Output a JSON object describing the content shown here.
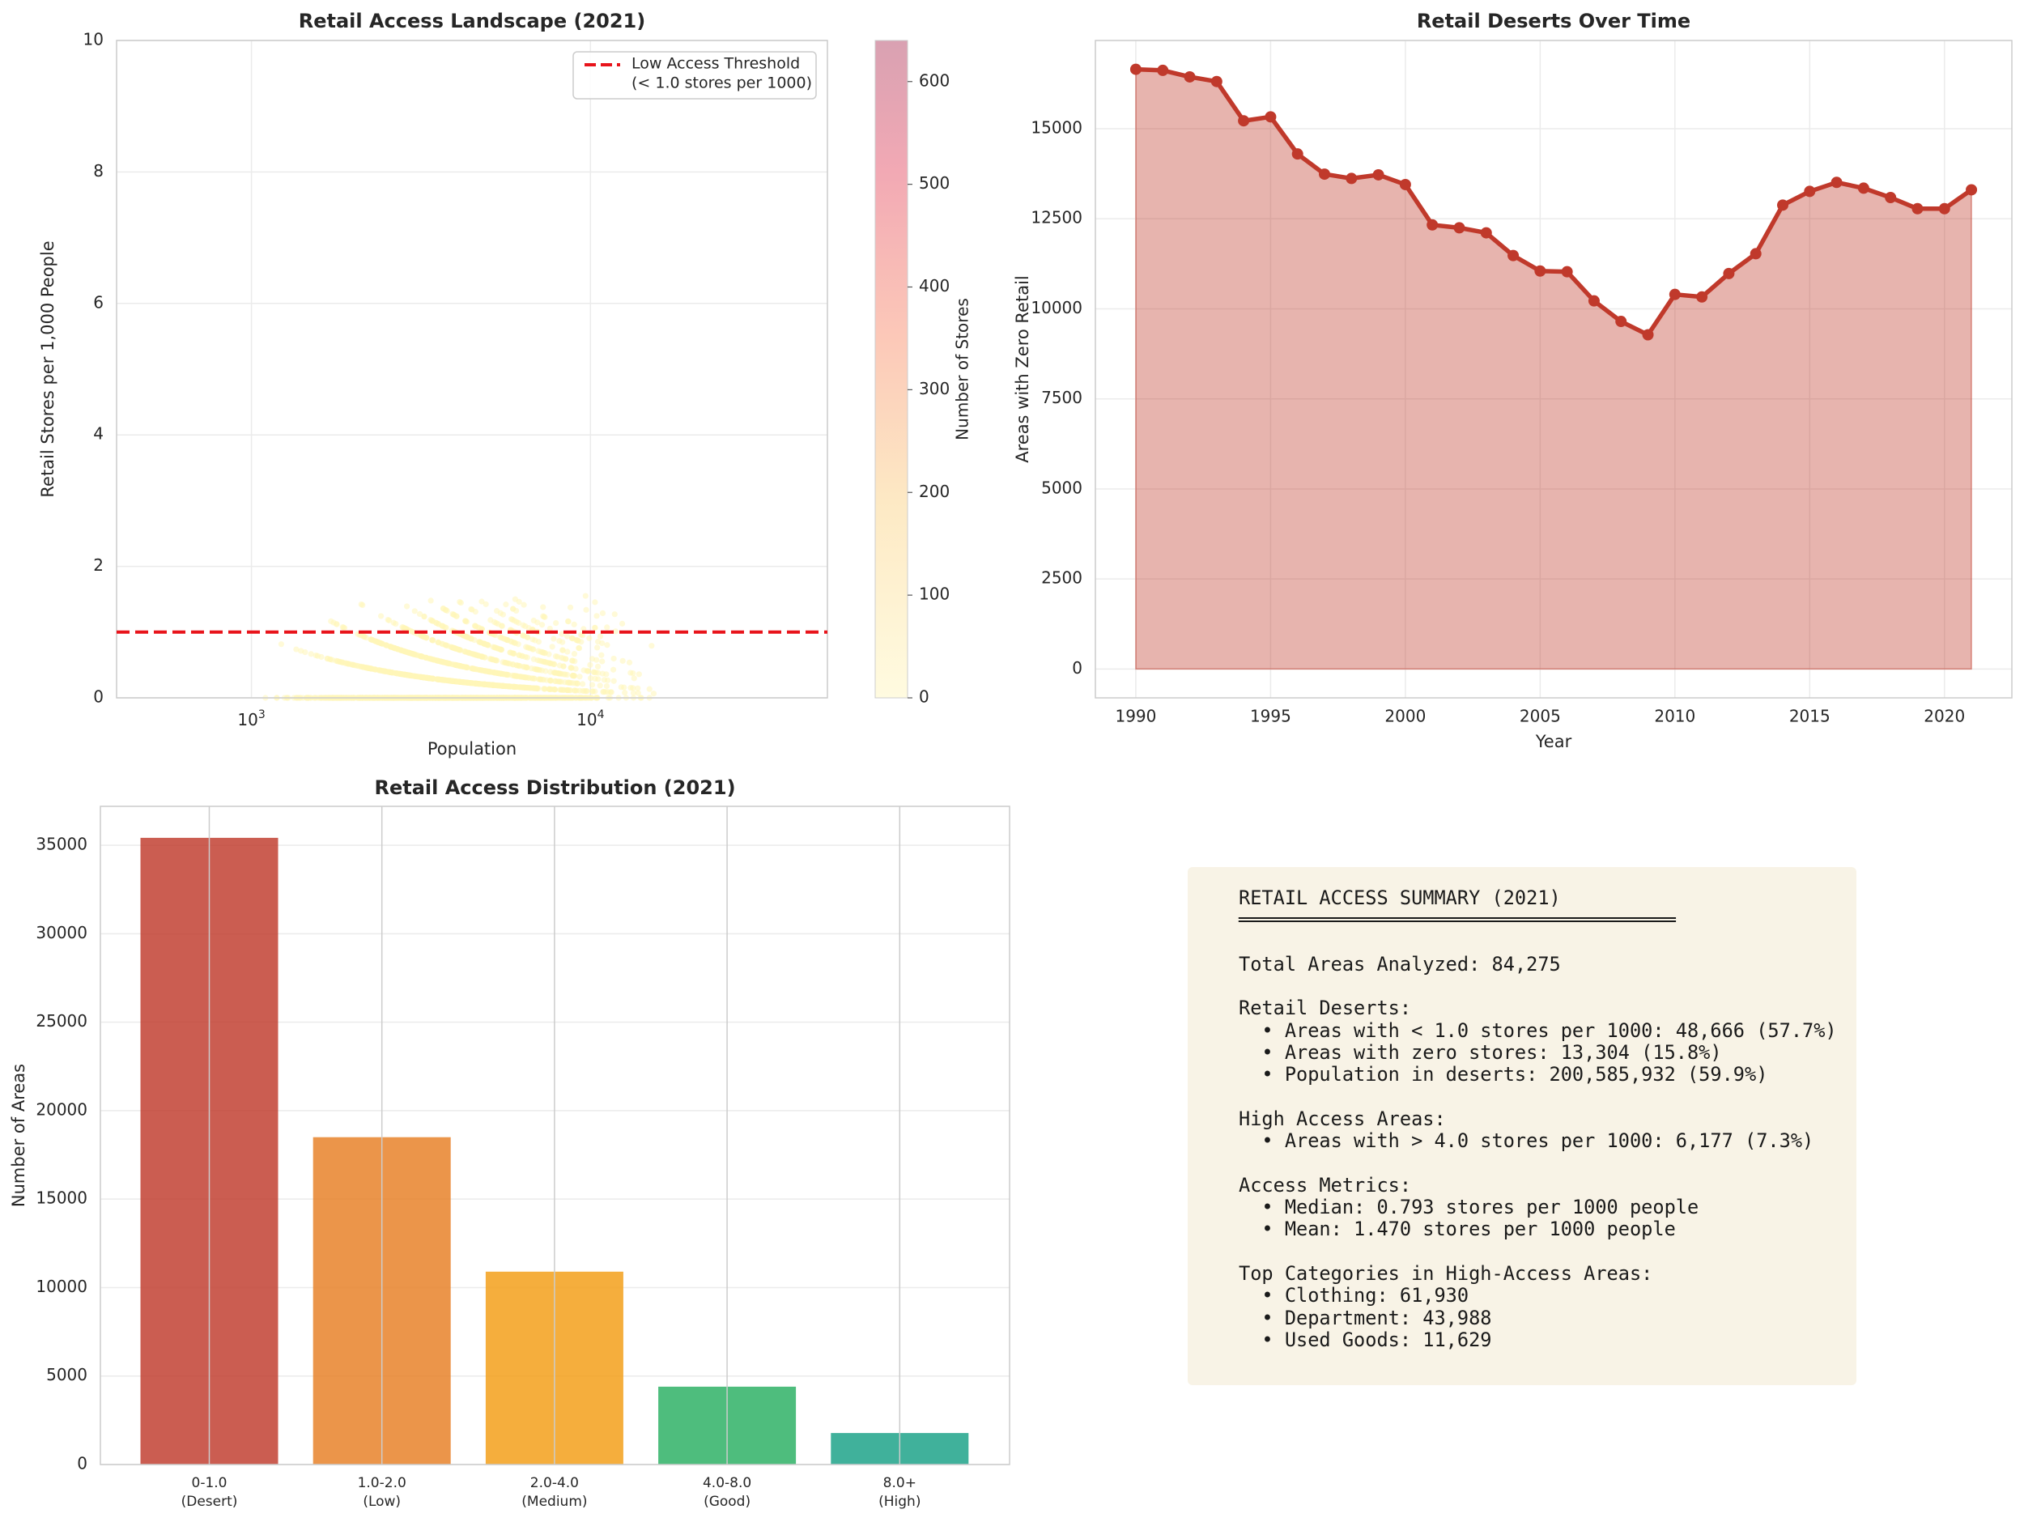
{
  "chart_data": [
    {
      "type": "scatter",
      "title": "Retail Access Landscape (2021)",
      "xlabel": "Population",
      "ylabel": "Retail Stores per 1,000 People",
      "xscale": "log",
      "xlim": [
        400,
        50000
      ],
      "ylim": [
        0,
        10
      ],
      "x_tick_labels": [
        {
          "base": "10",
          "exp": "3",
          "value": 1000
        },
        {
          "base": "10",
          "exp": "4",
          "value": 10000
        }
      ],
      "y_ticks": [
        0,
        2,
        4,
        6,
        8,
        10
      ],
      "threshold": {
        "value": 1.0,
        "color": "#e8141b"
      },
      "legend": {
        "position": "top-right",
        "entries": [
          "Low Access Threshold",
          "(< 1.0 stores per 1000)"
        ]
      },
      "colorbar": {
        "label": "Number of Stores",
        "ticks": [
          0,
          100,
          200,
          300,
          400,
          500,
          600
        ],
        "max": 640
      },
      "point_color": "#fff5b8",
      "grid": true
    },
    {
      "type": "area",
      "title": "Retail Deserts Over Time",
      "xlabel": "Year",
      "ylabel": "Areas with Zero Retail",
      "x": [
        1990,
        1991,
        1992,
        1993,
        1994,
        1995,
        1996,
        1997,
        1998,
        1999,
        2000,
        2001,
        2002,
        2003,
        2004,
        2005,
        2006,
        2007,
        2008,
        2009,
        2010,
        2011,
        2012,
        2013,
        2014,
        2015,
        2016,
        2017,
        2018,
        2019,
        2020,
        2021
      ],
      "values": [
        16650,
        16620,
        16440,
        16310,
        15220,
        15330,
        14300,
        13740,
        13620,
        13720,
        13450,
        12330,
        12250,
        12110,
        11480,
        11050,
        11030,
        10220,
        9650,
        9280,
        10400,
        10330,
        10980,
        11530,
        12880,
        13260,
        13510,
        13350,
        13090,
        12780,
        12780,
        13304
      ],
      "xlim": [
        1988.5,
        2022.5
      ],
      "ylim": [
        -800,
        17450
      ],
      "x_ticks": [
        1990,
        1995,
        2000,
        2005,
        2010,
        2015,
        2020
      ],
      "y_ticks": [
        0,
        2500,
        5000,
        7500,
        10000,
        12500,
        15000
      ],
      "line_color": "#c0392b",
      "fill_color": "#c0392b",
      "grid": true
    },
    {
      "type": "bar",
      "title": "Retail Access Distribution (2021)",
      "xlabel": "",
      "ylabel": "Number of Areas",
      "categories": [
        [
          "0-1.0",
          "(Desert)"
        ],
        [
          "1.0-2.0",
          "(Low)"
        ],
        [
          "2.0-4.0",
          "(Medium)"
        ],
        [
          "4.0-8.0",
          "(Good)"
        ],
        [
          "8.0+",
          "(High)"
        ]
      ],
      "values": [
        35420,
        18500,
        10900,
        4400,
        1780
      ],
      "colors": [
        "#c0392b",
        "#e67e22",
        "#f39c12",
        "#27ae60",
        "#16a085"
      ],
      "ylim": [
        0,
        37200
      ],
      "y_ticks": [
        0,
        5000,
        10000,
        15000,
        20000,
        25000,
        30000,
        35000
      ],
      "grid": true
    }
  ],
  "summary": {
    "lines": [
      "RETAIL ACCESS SUMMARY (2021)",
      "",
      "",
      "Total Areas Analyzed: 84,275",
      "",
      "Retail Deserts:",
      "  • Areas with < 1.0 stores per 1000: 48,666 (57.7%)",
      "  • Areas with zero stores: 13,304 (15.8%)",
      "  • Population in deserts: 200,585,932 (59.9%)",
      "",
      "High Access Areas:",
      "  • Areas with > 4.0 stores per 1000: 6,177 (7.3%)",
      "",
      "Access Metrics:",
      "  • Median: 0.793 stores per 1000 people",
      "  • Mean: 1.470 stores per 1000 people",
      "",
      "Top Categories in High-Access Areas:",
      "  • Clothing: 61,930",
      "  • Department: 43,988",
      "  • Used Goods: 11,629"
    ],
    "rule": "════════════════════════════════════════"
  }
}
